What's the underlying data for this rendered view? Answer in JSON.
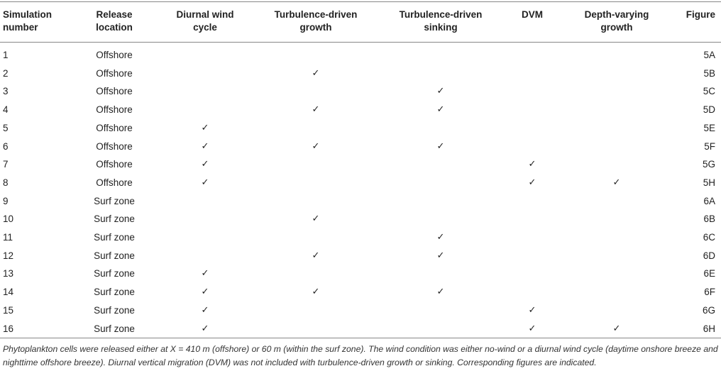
{
  "headers": {
    "sim": [
      "Simulation",
      "number"
    ],
    "loc": [
      "Release",
      "location"
    ],
    "wind": [
      "Diurnal wind",
      "cycle"
    ],
    "growth": [
      "Turbulence-driven",
      "growth"
    ],
    "sink": [
      "Turbulence-driven",
      "sinking"
    ],
    "dvm": [
      "DVM",
      ""
    ],
    "depth": [
      "Depth-varying",
      "growth"
    ],
    "fig": [
      "Figure",
      ""
    ]
  },
  "check": "✓",
  "rows": [
    {
      "n": "1",
      "loc": "Offshore",
      "wind": "",
      "growth": "",
      "sink": "",
      "dvm": "",
      "depth": "",
      "fig": "5A"
    },
    {
      "n": "2",
      "loc": "Offshore",
      "wind": "",
      "growth": "✓",
      "sink": "",
      "dvm": "",
      "depth": "",
      "fig": "5B"
    },
    {
      "n": "3",
      "loc": "Offshore",
      "wind": "",
      "growth": "",
      "sink": "✓",
      "dvm": "",
      "depth": "",
      "fig": "5C"
    },
    {
      "n": "4",
      "loc": "Offshore",
      "wind": "",
      "growth": "✓",
      "sink": "✓",
      "dvm": "",
      "depth": "",
      "fig": "5D"
    },
    {
      "n": "5",
      "loc": "Offshore",
      "wind": "✓",
      "growth": "",
      "sink": "",
      "dvm": "",
      "depth": "",
      "fig": "5E"
    },
    {
      "n": "6",
      "loc": "Offshore",
      "wind": "✓",
      "growth": "✓",
      "sink": "✓",
      "dvm": "",
      "depth": "",
      "fig": "5F"
    },
    {
      "n": "7",
      "loc": "Offshore",
      "wind": "✓",
      "growth": "",
      "sink": "",
      "dvm": "✓",
      "depth": "",
      "fig": "5G"
    },
    {
      "n": "8",
      "loc": "Offshore",
      "wind": "✓",
      "growth": "",
      "sink": "",
      "dvm": "✓",
      "depth": "✓",
      "fig": "5H"
    },
    {
      "n": "9",
      "loc": "Surf zone",
      "wind": "",
      "growth": "",
      "sink": "",
      "dvm": "",
      "depth": "",
      "fig": "6A"
    },
    {
      "n": "10",
      "loc": "Surf zone",
      "wind": "",
      "growth": "✓",
      "sink": "",
      "dvm": "",
      "depth": "",
      "fig": "6B"
    },
    {
      "n": "11",
      "loc": "Surf zone",
      "wind": "",
      "growth": "",
      "sink": "✓",
      "dvm": "",
      "depth": "",
      "fig": "6C"
    },
    {
      "n": "12",
      "loc": "Surf zone",
      "wind": "",
      "growth": "✓",
      "sink": "✓",
      "dvm": "",
      "depth": "",
      "fig": "6D"
    },
    {
      "n": "13",
      "loc": "Surf zone",
      "wind": "✓",
      "growth": "",
      "sink": "",
      "dvm": "",
      "depth": "",
      "fig": "6E"
    },
    {
      "n": "14",
      "loc": "Surf zone",
      "wind": "✓",
      "growth": "✓",
      "sink": "✓",
      "dvm": "",
      "depth": "",
      "fig": "6F"
    },
    {
      "n": "15",
      "loc": "Surf zone",
      "wind": "✓",
      "growth": "",
      "sink": "",
      "dvm": "✓",
      "depth": "",
      "fig": "6G"
    },
    {
      "n": "16",
      "loc": "Surf zone",
      "wind": "✓",
      "growth": "",
      "sink": "",
      "dvm": "✓",
      "depth": "✓",
      "fig": "6H"
    }
  ],
  "footnote": "Phytoplankton cells were released either at X = 410 m (offshore) or 60 m (within the surf zone). The wind condition was either no-wind or a diurnal wind cycle (daytime onshore breeze and nighttime offshore breeze). Diurnal vertical migration (DVM) was not included with turbulence-driven growth or sinking. Corresponding figures are indicated."
}
